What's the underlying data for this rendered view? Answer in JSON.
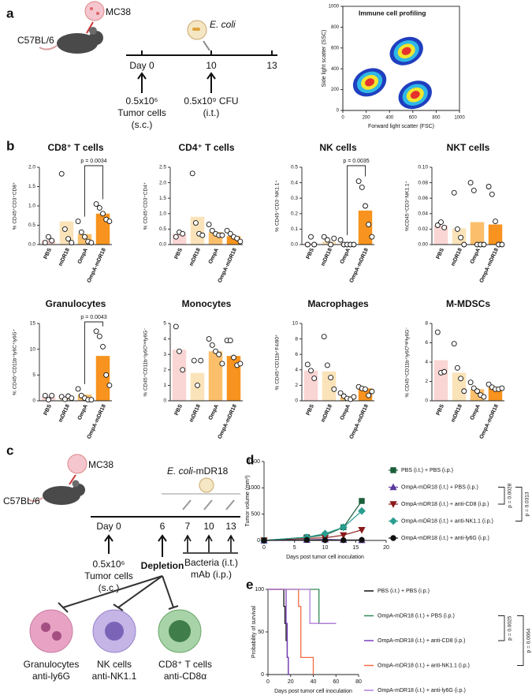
{
  "panel_labels": [
    "a",
    "b",
    "c",
    "d",
    "e"
  ],
  "schematic_a": {
    "cell_line": "MC38",
    "mouse": "C57BL/6",
    "bacteria": "E. coli",
    "timeline": [
      "Day 0",
      "10",
      "13"
    ],
    "tumor_dose": "0.5x10⁶",
    "tumor_desc": "Tumor cells",
    "tumor_route": "(s.c.)",
    "bacteria_dose": "0.5x10⁹ CFU",
    "bacteria_route": "(i.t.)"
  },
  "schematic_c": {
    "cell_line": "MC38",
    "mouse": "C57BL/6",
    "bacteria": "E. coli",
    "strain": "-mDR18",
    "timeline": [
      "Day 0",
      "6",
      "7",
      "10",
      "13"
    ],
    "tumor_dose": "0.5x10⁶",
    "tumor_desc": "Tumor cells",
    "tumor_route": "(s.c.)",
    "depletion": "Depletion",
    "treatment": [
      "Bacteria (i.t.)",
      "mAb (i.p.)"
    ],
    "cells": [
      {
        "name": "Granulocytes",
        "antibody": "anti-ly6G"
      },
      {
        "name": "NK cells",
        "antibody": "anti-NK1.1"
      },
      {
        "name": "CD8⁺ T cells",
        "antibody": "anti-CD8α"
      }
    ]
  },
  "chart_data": [
    {
      "type": "density",
      "title": "Immune cell profiling",
      "xlabel": "Forward light scatter (FSC)",
      "ylabel": "Side light scatter (SSC)",
      "xlim": [
        0,
        1000
      ],
      "xticks": [
        0,
        200,
        400,
        600,
        800,
        1000
      ],
      "ylim": [
        0,
        1000
      ],
      "yticks": [
        0,
        200,
        400,
        600,
        800,
        1000
      ],
      "clusters": [
        {
          "x": 230,
          "y": 270
        },
        {
          "x": 545,
          "y": 570
        },
        {
          "x": 620,
          "y": 150
        }
      ],
      "colors": [
        "#1f3fbf",
        "#2fb8e6",
        "#f2e52f",
        "#e5322d"
      ]
    },
    {
      "type": "bar",
      "title": "CD8⁺ T cells",
      "ylabel": "% CD45⁺CD3⁺CD8⁺",
      "categories": [
        "PBS",
        "mDR18",
        "OmpA",
        "OmpA-mDR18"
      ],
      "values": [
        0.12,
        0.6,
        0.27,
        0.8
      ],
      "points": [
        [
          0.05,
          0.2,
          0.1
        ],
        [
          1.83,
          0.4,
          0.15,
          0.05
        ],
        [
          0.6,
          0.32,
          0.2,
          0.08,
          0.05
        ],
        [
          1.05,
          0.95,
          0.8,
          0.65,
          0.6
        ]
      ],
      "colors": [
        "#f9d5d3",
        "#fbe3b9",
        "#fbbf6b",
        "#f7931e"
      ],
      "ylim": [
        0,
        2.0
      ],
      "yticks": [
        {
          "value": 0,
          "label": "0.0"
        },
        0.5,
        {
          "value": 1,
          "label": "1.0"
        },
        1.5,
        {
          "value": 2,
          "label": "2.0"
        }
      ],
      "annotation": "p = 0.0034"
    },
    {
      "type": "bar",
      "title": "CD4⁺ T cells",
      "ylabel": "% CD45⁺CD3⁺CD4⁺",
      "categories": [
        "PBS",
        "mDR18",
        "OmpA",
        "OmpA-mDR18"
      ],
      "values": [
        0.35,
        0.9,
        0.4,
        0.27
      ],
      "points": [
        [
          0.25,
          0.4,
          0.35
        ],
        [
          2.3,
          0.7,
          0.35,
          0.3
        ],
        [
          0.65,
          0.45,
          0.35,
          0.3,
          0.3
        ],
        [
          0.45,
          0.35,
          0.25,
          0.2,
          0.1
        ]
      ],
      "colors": [
        "#f9d5d3",
        "#fbe3b9",
        "#fbbf6b",
        "#f7931e"
      ],
      "ylim": [
        0,
        2.5
      ],
      "yticks": [
        {
          "value": 0,
          "label": "0.0"
        },
        0.5,
        {
          "value": 1,
          "label": "1.0"
        },
        1.5,
        {
          "value": 2,
          "label": "2.0"
        },
        2.5
      ]
    },
    {
      "type": "bar",
      "title": "NK cells",
      "ylabel": "% CD45⁺CD3⁻NK1.1⁺",
      "categories": [
        "PBS",
        "mDR18",
        "OmpA",
        "OmpA-mDR18"
      ],
      "values": [
        0.01,
        0.02,
        0.01,
        0.22
      ],
      "points": [
        [
          0.0,
          0.05,
          0.0
        ],
        [
          0.05,
          0.03,
          0.0,
          0.04
        ],
        [
          0.03,
          0.0,
          0.0,
          0.0,
          0.0
        ],
        [
          0.41,
          0.37,
          0.25,
          0.13,
          0.05
        ]
      ],
      "colors": [
        "#f9d5d3",
        "#fbe3b9",
        "#fbbf6b",
        "#f7931e"
      ],
      "ylim": [
        0,
        0.5
      ],
      "yticks": [
        {
          "value": 0,
          "label": "0.0"
        },
        0.1,
        0.2,
        0.3,
        0.4,
        0.5
      ],
      "annotation": "p = 0.0035"
    },
    {
      "type": "bar",
      "title": "NKT cells",
      "ylabel": "%CD45⁺CD3⁺NK1.1⁺",
      "categories": [
        "PBS",
        "mDR18",
        "OmpA",
        "OmpA-mDR18"
      ],
      "values": [
        0.025,
        0.021,
        0.029,
        0.026
      ],
      "points": [
        [
          0.025,
          0.029,
          0.022
        ],
        [
          0.067,
          0.02,
          0.009,
          0.0
        ],
        [
          0.08,
          0.07,
          0.0,
          0.0,
          0.0
        ],
        [
          0.075,
          0.065,
          0.03,
          0.0,
          0.0
        ]
      ],
      "colors": [
        "#f9d5d3",
        "#fbe3b9",
        "#fbbf6b",
        "#f7931e"
      ],
      "ylim": [
        0,
        0.1
      ],
      "yticks": [
        {
          "value": 0,
          "label": "0.00"
        },
        0.02,
        0.04,
        0.06,
        0.08,
        {
          "value": 0.1,
          "label": "0.10"
        }
      ]
    },
    {
      "type": "bar",
      "title": "Granulocytes",
      "ylabel": "% CD45⁺CD11b⁺ly6C⁺ly6G⁺",
      "categories": [
        "PBS",
        "mDR18",
        "OmpA",
        "OmpA-mDR18"
      ],
      "values": [
        0.8,
        0.5,
        1.2,
        8.7
      ],
      "points": [
        [
          1.0,
          0.2,
          1.0
        ],
        [
          0.8,
          0.3,
          0.9,
          0.5
        ],
        [
          2.3,
          1.0,
          0.5,
          0.2,
          0.2
        ],
        [
          13.5,
          12.5,
          10.5,
          5.0,
          3.0
        ]
      ],
      "colors": [
        "#f9d5d3",
        "#fbe3b9",
        "#fbbf6b",
        "#f7931e"
      ],
      "ylim": [
        0,
        15
      ],
      "yticks": [
        0,
        5,
        10,
        15
      ],
      "annotation": "p = 0.0043"
    },
    {
      "type": "bar",
      "title": "Monocytes",
      "ylabel": "% CD45⁺CD11b⁺ly6Cˡᵒʷly6G⁻",
      "categories": [
        "PBS",
        "mDR18",
        "OmpA",
        "OmpA-mDR18"
      ],
      "values": [
        3.3,
        1.8,
        3.2,
        2.9
      ],
      "points": [
        [
          4.8,
          3.2,
          2.0
        ],
        [
          2.6,
          1.0,
          2.6
        ],
        [
          4.0,
          3.6,
          3.2,
          3.0,
          2.4
        ],
        [
          3.9,
          3.9,
          2.8,
          2.3,
          2.4
        ]
      ],
      "colors": [
        "#f9d5d3",
        "#fbe3b9",
        "#fbbf6b",
        "#f7931e"
      ],
      "ylim": [
        0,
        5
      ],
      "yticks": [
        0,
        1,
        2,
        3,
        4,
        5
      ]
    },
    {
      "type": "bar",
      "title": "Macrophages",
      "ylabel": "% CD45⁺CD11b⁺F4/80⁺",
      "categories": [
        "PBS",
        "mDR18",
        "OmpA",
        "OmpA-mDR18"
      ],
      "values": [
        3.9,
        3.8,
        0.6,
        1.6
      ],
      "points": [
        [
          4.7,
          3.9,
          2.9
        ],
        [
          8.3,
          4.6,
          3.0,
          1.5
        ],
        [
          1.0,
          0.6,
          0.3,
          0.2,
          0.5
        ],
        [
          1.8,
          1.6,
          1.5,
          0.7,
          1.2
        ]
      ],
      "colors": [
        "#f9d5d3",
        "#fbe3b9",
        "#fbbf6b",
        "#f7931e"
      ],
      "ylim": [
        0,
        10
      ],
      "yticks": [
        0,
        2,
        4,
        6,
        8,
        10
      ]
    },
    {
      "type": "bar",
      "title": "M-MDSCs",
      "ylabel": "% CD45⁺CD11b⁺ly6Cʰⁱᵍʰly6G⁻",
      "categories": [
        "PBS",
        "mDR18",
        "OmpA",
        "OmpA-mDR18"
      ],
      "values": [
        4.2,
        2.9,
        1.2,
        1.4
      ],
      "points": [
        [
          7.1,
          2.9,
          3.0
        ],
        [
          5.9,
          3.4,
          2.3,
          1.0
        ],
        [
          1.9,
          1.3,
          1.0,
          0.6,
          0.4
        ],
        [
          1.7,
          1.4,
          1.2,
          1.2,
          1.3
        ]
      ],
      "colors": [
        "#f9d5d3",
        "#fbe3b9",
        "#fbbf6b",
        "#f7931e"
      ],
      "ylim": [
        0,
        8
      ],
      "yticks": [
        0,
        2,
        4,
        6,
        8
      ]
    },
    {
      "type": "line",
      "xlabel": "Days post tumor cell inoculation",
      "ylabel": "Tumor volume (mm³)",
      "x": [
        0,
        7,
        10,
        13,
        16
      ],
      "xlim": [
        0,
        20
      ],
      "xticks": [
        0,
        5,
        10,
        15,
        20
      ],
      "ylim": [
        0,
        1500
      ],
      "yticks": [
        0,
        500,
        1000,
        1500
      ],
      "series": [
        {
          "name": "PBS (i.t.) + PBS (i.p.)",
          "color": "#1b5e3a",
          "marker": "square",
          "values": [
            0,
            60,
            100,
            250,
            750
          ]
        },
        {
          "name": "OmpA-mDR18 (i.t.) + PBS (i.p.)",
          "color": "#5b3a9e",
          "marker": "triangle-up",
          "values": [
            0,
            10,
            20,
            10,
            5
          ]
        },
        {
          "name": "OmpA-mDR18 (i.t.) + anti-CD8 (i.p.)",
          "color": "#8b1a1a",
          "marker": "triangle-down",
          "values": [
            0,
            40,
            50,
            100,
            200
          ]
        },
        {
          "name": "OmpA-mDR18 (i.t.) + anti-NK1.1 (i.p.)",
          "color": "#2a9d8f",
          "marker": "diamond",
          "values": [
            0,
            60,
            130,
            250,
            560
          ]
        },
        {
          "name": "OmpA-mDR18 (i.t.) + anti-ly6G (i.p.)",
          "color": "#111111",
          "marker": "circle",
          "values": [
            0,
            10,
            5,
            5,
            10
          ]
        }
      ],
      "annotations": [
        "p = 0.0028",
        "p = 0.0313"
      ]
    },
    {
      "type": "survival",
      "xlabel": "Days post tumor cell inoculation",
      "ylabel": "Probability of survival",
      "xlim": [
        0,
        80
      ],
      "xticks": [
        0,
        20,
        40,
        60,
        80
      ],
      "ylim": [
        0,
        100
      ],
      "yticks": [
        0,
        50,
        100
      ],
      "series": [
        {
          "name": "PBS (i.t.) + PBS (i.p.)",
          "color": "#111111",
          "x": [
            0,
            14,
            14,
            15,
            15,
            16,
            16,
            17,
            17,
            18,
            18,
            19
          ],
          "values": [
            100,
            100,
            80,
            80,
            60,
            60,
            40,
            40,
            20,
            20,
            0,
            0
          ]
        },
        {
          "name": "OmpA-mDR18 (i.t.) + PBS (i.p.)",
          "color": "#2e8b57",
          "x": [
            0,
            45,
            45,
            60
          ],
          "values": [
            100,
            100,
            60,
            60
          ]
        },
        {
          "name": "OmpA-mDR18 (i.t.) + anti-CD8 (i.p.)",
          "color": "#7b3fbf",
          "x": [
            0,
            16,
            16,
            17,
            17,
            18,
            18,
            19
          ],
          "values": [
            100,
            100,
            60,
            60,
            20,
            20,
            0,
            0
          ]
        },
        {
          "name": "OmpA-mDR18 (i.t.) + anti-NK1.1 (i.p.)",
          "color": "#f26b43",
          "x": [
            0,
            27,
            27,
            29,
            29,
            40,
            40
          ],
          "values": [
            100,
            100,
            80,
            80,
            20,
            20,
            0
          ]
        },
        {
          "name": "OmpA-mDR18 (i.t.) + anti-ly6G (i.p.)",
          "color": "#b57edc",
          "x": [
            0,
            37,
            37,
            60
          ],
          "values": [
            100,
            100,
            60,
            60
          ]
        }
      ],
      "annotations": [
        "p = 0.0025",
        "p = 0.0064"
      ]
    }
  ]
}
